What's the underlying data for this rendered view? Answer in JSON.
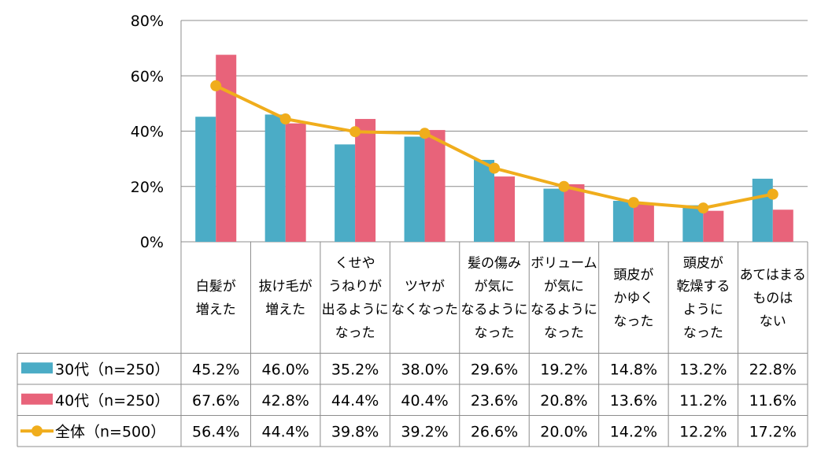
{
  "chart_data": {
    "type": "bar",
    "categories": [
      [
        "白髪が",
        "増えた"
      ],
      [
        "抜け毛が",
        "増えた"
      ],
      [
        "くせや",
        "うねりが",
        "出るように",
        "なった"
      ],
      [
        "ツヤが",
        "なくなった"
      ],
      [
        "髪の傷み",
        "が気に",
        "なるように",
        "なった"
      ],
      [
        "ボリューム",
        "が気に",
        "なるように",
        "なった"
      ],
      [
        "頭皮が",
        "かゆく",
        "なった"
      ],
      [
        "頭皮が",
        "乾燥する",
        "ように",
        "なった"
      ],
      [
        "あてはまる",
        "ものは",
        "ない"
      ]
    ],
    "series": [
      {
        "name": "30代（n=250）",
        "kind": "bar",
        "color": "#4bacc6",
        "values": [
          45.2,
          46.0,
          35.2,
          38.0,
          29.6,
          19.2,
          14.8,
          13.2,
          22.8
        ],
        "labels": [
          "45.2%",
          "46.0%",
          "35.2%",
          "38.0%",
          "29.6%",
          "19.2%",
          "14.8%",
          "13.2%",
          "22.8%"
        ]
      },
      {
        "name": "40代（n=250）",
        "kind": "bar",
        "color": "#e8637a",
        "values": [
          67.6,
          42.8,
          44.4,
          40.4,
          23.6,
          20.8,
          13.6,
          11.2,
          11.6
        ],
        "labels": [
          "67.6%",
          "42.8%",
          "44.4%",
          "40.4%",
          "23.6%",
          "20.8%",
          "13.6%",
          "11.2%",
          "11.6%"
        ]
      },
      {
        "name": "全体（n=500）",
        "kind": "line",
        "color": "#f0ad1c",
        "values": [
          56.4,
          44.4,
          39.8,
          39.2,
          26.6,
          20.0,
          14.2,
          12.2,
          17.2
        ],
        "labels": [
          "56.4%",
          "44.4%",
          "39.8%",
          "39.2%",
          "26.6%",
          "20.0%",
          "14.2%",
          "12.2%",
          "17.2%"
        ]
      }
    ],
    "yticks": [
      "80%",
      "60%",
      "40%",
      "20%",
      "0%"
    ],
    "ytick_values": [
      80,
      60,
      40,
      20,
      0
    ],
    "ylim": [
      0,
      80
    ],
    "title": "",
    "xlabel": "",
    "ylabel": "",
    "grid": true,
    "legend": "data-table"
  }
}
